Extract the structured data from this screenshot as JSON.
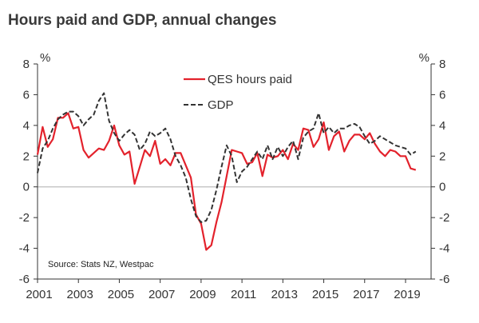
{
  "chart_data": {
    "type": "line",
    "title": "Hours paid and GDP, annual changes",
    "y_unit_left": "%",
    "y_unit_right": "%",
    "source": "Source: Stats NZ, Westpac",
    "ylim": [
      -6,
      8
    ],
    "yticks": [
      8,
      6,
      4,
      2,
      0,
      -2,
      -4,
      -6
    ],
    "xlim": [
      2001.0,
      2020.25
    ],
    "xticks": [
      2001,
      2003,
      2005,
      2007,
      2009,
      2011,
      2013,
      2015,
      2017,
      2019
    ],
    "xtick_labels": [
      "2001",
      "2003",
      "2005",
      "2007",
      "2009",
      "2011",
      "2013",
      "2015",
      "2017",
      "2019"
    ],
    "grid": false,
    "legend_position": "top-center",
    "colors": {
      "qes": "#e3222c",
      "gdp": "#333333",
      "zero_line": "#bdbdbd",
      "axis": "#333333",
      "title": "#3a3a3a"
    },
    "series": [
      {
        "name": "QES hours paid",
        "style": "solid",
        "x": [
          2001.0,
          2001.25,
          2001.5,
          2001.75,
          2002.0,
          2002.25,
          2002.5,
          2002.75,
          2003.0,
          2003.25,
          2003.5,
          2003.75,
          2004.0,
          2004.25,
          2004.5,
          2004.75,
          2005.0,
          2005.25,
          2005.5,
          2005.75,
          2006.0,
          2006.25,
          2006.5,
          2006.75,
          2007.0,
          2007.25,
          2007.5,
          2007.75,
          2008.0,
          2008.25,
          2008.5,
          2008.75,
          2009.0,
          2009.25,
          2009.5,
          2009.75,
          2010.0,
          2010.25,
          2010.5,
          2010.75,
          2011.0,
          2011.25,
          2011.5,
          2011.75,
          2012.0,
          2012.25,
          2012.5,
          2012.75,
          2013.0,
          2013.25,
          2013.5,
          2013.75,
          2014.0,
          2014.25,
          2014.5,
          2014.75,
          2015.0,
          2015.25,
          2015.5,
          2015.75,
          2016.0,
          2016.25,
          2016.5,
          2016.75,
          2017.0,
          2017.25,
          2017.5,
          2017.75,
          2018.0,
          2018.25,
          2018.5,
          2018.75,
          2019.0,
          2019.25,
          2019.5
        ],
        "values": [
          2.1,
          3.9,
          2.6,
          3.1,
          4.5,
          4.5,
          4.8,
          3.8,
          3.9,
          2.4,
          1.9,
          2.2,
          2.5,
          2.4,
          3.0,
          4.0,
          2.7,
          2.1,
          2.3,
          0.2,
          1.3,
          2.4,
          2.0,
          3.0,
          1.5,
          1.8,
          1.4,
          2.2,
          2.2,
          1.4,
          0.6,
          -1.8,
          -2.4,
          -4.1,
          -3.8,
          -2.3,
          -1.0,
          0.7,
          2.4,
          2.3,
          2.2,
          1.5,
          1.6,
          2.2,
          0.7,
          2.1,
          1.9,
          2.0,
          2.4,
          1.8,
          2.8,
          2.4,
          3.8,
          3.7,
          2.6,
          3.1,
          4.2,
          2.4,
          3.3,
          3.6,
          2.3,
          3.0,
          3.4,
          3.4,
          3.1,
          3.5,
          2.8,
          2.3,
          2.0,
          2.4,
          2.3,
          2.0,
          2.0,
          1.2,
          1.1
        ]
      },
      {
        "name": "GDP",
        "style": "dashed",
        "x": [
          2001.0,
          2001.25,
          2001.5,
          2001.75,
          2002.0,
          2002.25,
          2002.5,
          2002.75,
          2003.0,
          2003.25,
          2003.5,
          2003.75,
          2004.0,
          2004.25,
          2004.5,
          2004.75,
          2005.0,
          2005.25,
          2005.5,
          2005.75,
          2006.0,
          2006.25,
          2006.5,
          2006.75,
          2007.0,
          2007.25,
          2007.5,
          2007.75,
          2008.0,
          2008.25,
          2008.5,
          2008.75,
          2009.0,
          2009.25,
          2009.5,
          2009.75,
          2010.0,
          2010.25,
          2010.5,
          2010.75,
          2011.0,
          2011.25,
          2011.5,
          2011.75,
          2012.0,
          2012.25,
          2012.5,
          2012.75,
          2013.0,
          2013.25,
          2013.5,
          2013.75,
          2014.0,
          2014.25,
          2014.5,
          2014.75,
          2015.0,
          2015.25,
          2015.5,
          2015.75,
          2016.0,
          2016.25,
          2016.5,
          2016.75,
          2017.0,
          2017.25,
          2017.5,
          2017.75,
          2018.0,
          2018.25,
          2018.5,
          2018.75,
          2019.0,
          2019.25,
          2019.5
        ],
        "values": [
          0.9,
          2.5,
          3.0,
          3.8,
          4.4,
          4.7,
          4.9,
          4.9,
          4.6,
          4.0,
          4.4,
          4.7,
          5.6,
          6.1,
          4.3,
          3.5,
          3.0,
          3.4,
          3.7,
          3.4,
          2.4,
          2.8,
          3.6,
          3.3,
          3.5,
          3.8,
          3.1,
          2.0,
          1.4,
          0.6,
          -0.8,
          -1.9,
          -2.3,
          -2.2,
          -1.5,
          -0.2,
          1.3,
          2.7,
          2.0,
          0.3,
          1.0,
          1.3,
          1.8,
          2.3,
          1.8,
          2.7,
          1.8,
          2.6,
          2.0,
          2.6,
          3.0,
          1.8,
          3.2,
          3.6,
          3.8,
          4.8,
          3.5,
          3.9,
          3.5,
          3.8,
          3.8,
          4.0,
          4.1,
          3.9,
          3.3,
          2.8,
          3.0,
          3.3,
          3.1,
          2.9,
          2.7,
          2.6,
          2.5,
          2.1,
          2.3
        ]
      }
    ]
  }
}
